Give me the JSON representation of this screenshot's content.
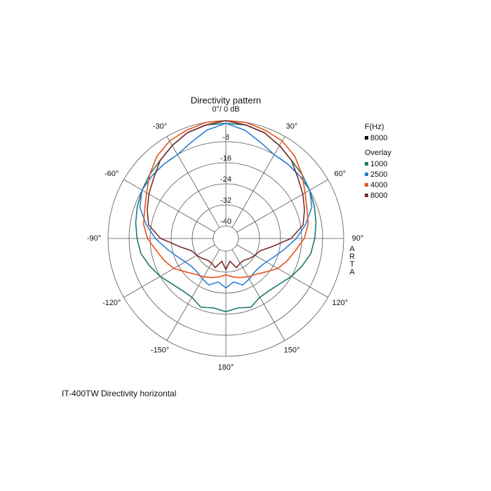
{
  "chart_data": {
    "type": "polar",
    "title": "Directivity pattern",
    "caption": "IT-400TW Directivity horizontal",
    "side_label": "ARTA",
    "theta": [
      -180,
      -170,
      -160,
      -150,
      -140,
      -130,
      -120,
      -110,
      -100,
      -90,
      -80,
      -70,
      -60,
      -50,
      -40,
      -30,
      -20,
      -10,
      0,
      10,
      20,
      30,
      40,
      50,
      60,
      70,
      80,
      90,
      100,
      110,
      120,
      130,
      140,
      150,
      160,
      170
    ],
    "thetaticks": [
      {
        "value": 0,
        "label": "0°/ 0 dB"
      },
      {
        "value": 30,
        "label": "30°"
      },
      {
        "value": 60,
        "label": "60°"
      },
      {
        "value": 90,
        "label": "90°"
      },
      {
        "value": 120,
        "label": "120°"
      },
      {
        "value": 150,
        "label": "150°"
      },
      {
        "value": 180,
        "label": "180°"
      },
      {
        "value": -150,
        "label": "-150°"
      },
      {
        "value": -120,
        "label": "-120°"
      },
      {
        "value": -90,
        "label": "-90°"
      },
      {
        "value": -60,
        "label": "-60°"
      },
      {
        "value": -30,
        "label": "-30°"
      }
    ],
    "rlim": [
      -40,
      0
    ],
    "rticks": [
      -40,
      -32,
      -24,
      -16,
      -8
    ],
    "legend": {
      "title": "F(Hz)",
      "current": {
        "name": "8000",
        "color": "#000000"
      },
      "overlay_title": "Overlay"
    },
    "series": [
      {
        "name": "1000",
        "color": "#1a7a6e",
        "values": [
          -17,
          -18,
          -17,
          -19,
          -19,
          -18,
          -16,
          -14,
          -12,
          -11,
          -10,
          -9,
          -8,
          -7,
          -6,
          -4,
          -2,
          -1,
          -1,
          -1,
          -2,
          -4,
          -6,
          -7,
          -8,
          -9,
          -10,
          -11,
          -12,
          -14,
          -16,
          -18,
          -19,
          -19,
          -17,
          -18
        ]
      },
      {
        "name": "2500",
        "color": "#2a80d6",
        "values": [
          -26,
          -28,
          -26,
          -27,
          -28,
          -28,
          -27,
          -25,
          -22,
          -18,
          -14,
          -10,
          -8,
          -8,
          -8,
          -8,
          -6,
          -3,
          -1,
          -3,
          -6,
          -8,
          -8,
          -8,
          -8,
          -10,
          -14,
          -18,
          -22,
          -25,
          -27,
          -28,
          -28,
          -27,
          -26,
          -28
        ]
      },
      {
        "name": "4000",
        "color": "#e8521c",
        "values": [
          -31,
          -30,
          -29,
          -28,
          -27,
          -25,
          -22,
          -20,
          -18,
          -15,
          -13,
          -12,
          -10,
          -7,
          -4,
          -2,
          -1,
          0,
          0,
          0,
          -1,
          -2,
          -4,
          -7,
          -10,
          -12,
          -13,
          -15,
          -18,
          -20,
          -22,
          -25,
          -27,
          -28,
          -29,
          -30
        ]
      },
      {
        "name": "8000",
        "color": "#7a2c2c",
        "values": [
          -33,
          -36,
          -33,
          -34,
          -34,
          -33,
          -32,
          -31,
          -27,
          -20,
          -15,
          -13,
          -11,
          -9,
          -6,
          -4,
          -2,
          -1,
          0,
          -1,
          -2,
          -4,
          -6,
          -9,
          -11,
          -13,
          -15,
          -20,
          -27,
          -31,
          -32,
          -33,
          -34,
          -34,
          -33,
          -36
        ]
      }
    ]
  }
}
